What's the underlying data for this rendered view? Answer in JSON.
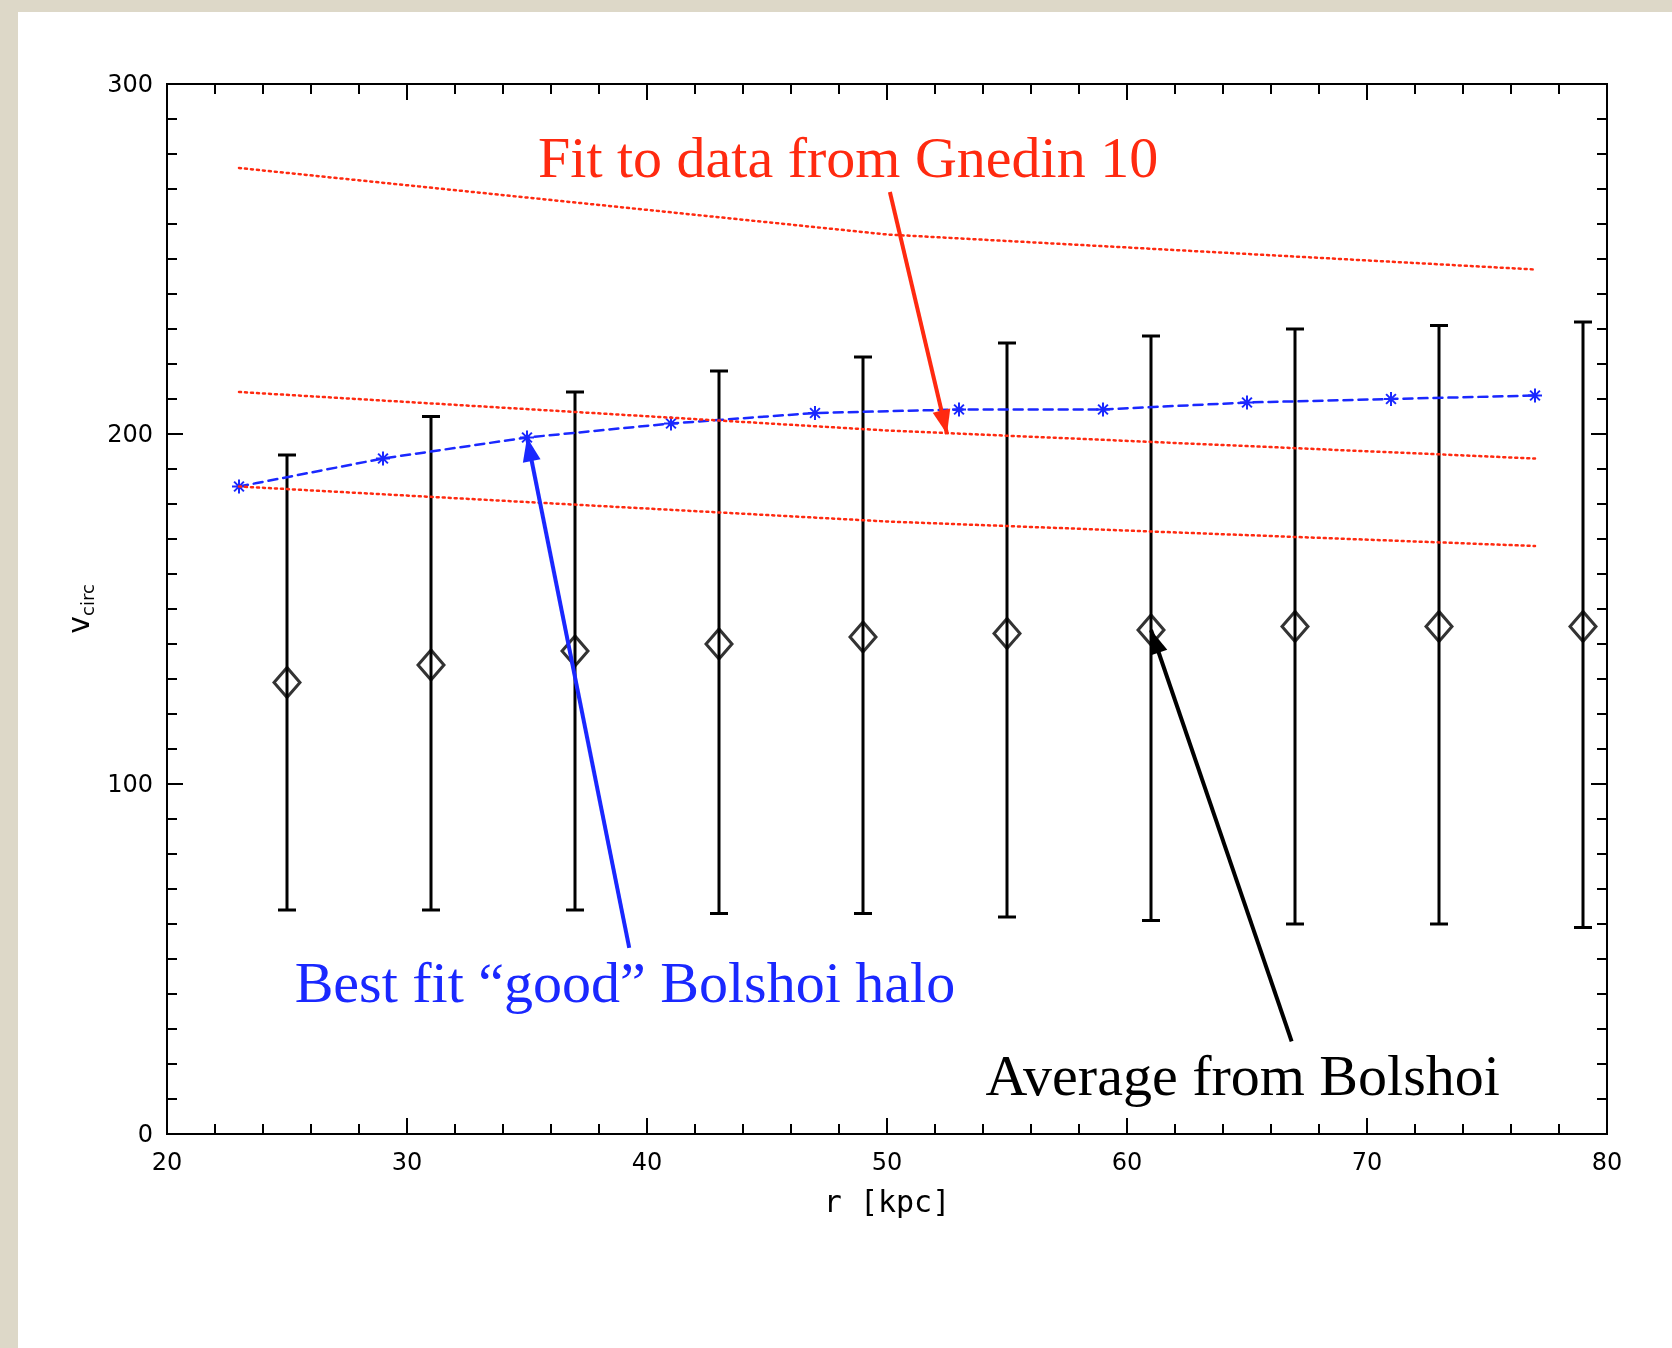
{
  "chart_data": {
    "type": "scatter",
    "xlabel": "r [kpc]",
    "ylabel": "v$_{circ}$",
    "xlim": [
      20,
      80
    ],
    "ylim": [
      0,
      300
    ],
    "xticks": [
      20,
      30,
      40,
      50,
      60,
      70,
      80
    ],
    "yticks": [
      0,
      100,
      200,
      300
    ],
    "grid": false,
    "annotations": [
      {
        "text": "Fit to data from Gnedin 10",
        "x": 52.5,
        "y": 200
      },
      {
        "text": "Best fit “good” Bolshoi halo",
        "x": 35,
        "y": 199
      },
      {
        "text": "Average from Bolshoi",
        "x": 61,
        "y": 144
      }
    ],
    "series": [
      {
        "type": "line",
        "color": "#1a28ff",
        "line_style": "dashed",
        "marker": "cross",
        "x": [
          23,
          29,
          35,
          41,
          47,
          53,
          59,
          65,
          71,
          77
        ],
        "values": [
          185,
          193,
          199,
          203,
          206,
          207,
          207,
          209,
          210,
          211
        ]
      },
      {
        "type": "line",
        "color": "#ff2a10",
        "line_style": "dotted",
        "marker": "none",
        "x": [
          23,
          50,
          77
        ],
        "values": [
          276,
          257,
          247
        ]
      },
      {
        "type": "line",
        "color": "#ff2a10",
        "line_style": "dotted",
        "marker": "none",
        "x": [
          23,
          50,
          77
        ],
        "values": [
          212,
          201,
          193
        ]
      },
      {
        "type": "line",
        "color": "#ff2a10",
        "line_style": "dotted",
        "marker": "none",
        "x": [
          23,
          50,
          77
        ],
        "values": [
          185,
          175,
          168
        ]
      },
      {
        "color": "#000000",
        "marker": "diamond",
        "x": [
          25,
          31,
          37,
          43,
          49,
          55,
          61,
          67,
          73,
          79
        ],
        "values": [
          129,
          134,
          138,
          140,
          142,
          143,
          144,
          145,
          145,
          145
        ],
        "errors": [
          [
            64,
            194
          ],
          [
            64,
            205
          ],
          [
            64,
            212
          ],
          [
            63,
            218
          ],
          [
            63,
            222
          ],
          [
            62,
            226
          ],
          [
            61,
            228
          ],
          [
            60,
            230
          ],
          [
            60,
            231
          ],
          [
            59,
            232
          ]
        ]
      }
    ]
  }
}
